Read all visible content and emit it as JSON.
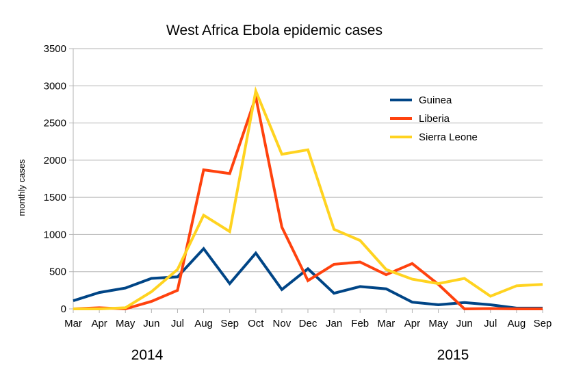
{
  "chart_data": {
    "type": "line",
    "title": "West Africa Ebola epidemic cases",
    "xlabel": "",
    "ylabel": "monthly cases",
    "ylim": [
      0,
      3500
    ],
    "yticks": [
      0,
      500,
      1000,
      1500,
      2000,
      2500,
      3000,
      3500
    ],
    "categories": [
      "Mar",
      "Apr",
      "May",
      "Jun",
      "Jul",
      "Aug",
      "Sep",
      "Oct",
      "Nov",
      "Dec",
      "Jan",
      "Feb",
      "Mar",
      "Apr",
      "May",
      "Jun",
      "Jul",
      "Aug",
      "Sep"
    ],
    "year_labels": [
      "2014",
      "2015"
    ],
    "grid": true,
    "legend_position": "top-right",
    "series": [
      {
        "name": "Guinea",
        "color": "#004586",
        "values": [
          110,
          220,
          280,
          410,
          430,
          810,
          340,
          750,
          260,
          540,
          210,
          300,
          270,
          90,
          55,
          85,
          55,
          10,
          10
        ]
      },
      {
        "name": "Liberia",
        "color": "#ff420e",
        "values": [
          0,
          15,
          0,
          100,
          250,
          1870,
          1820,
          2850,
          1100,
          380,
          600,
          630,
          460,
          610,
          330,
          0,
          5,
          0,
          0
        ]
      },
      {
        "name": "Sierra Leone",
        "color": "#ffd320",
        "values": [
          0,
          0,
          15,
          230,
          530,
          1260,
          1040,
          2930,
          2080,
          2140,
          1070,
          920,
          530,
          400,
          340,
          410,
          170,
          310,
          330
        ]
      }
    ]
  }
}
